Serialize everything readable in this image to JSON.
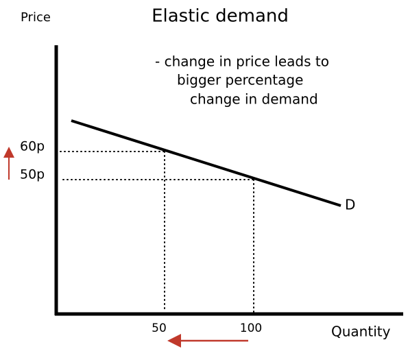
{
  "title": "Elastic demand",
  "y_axis_label": "Price",
  "x_axis_label": "Quantity",
  "annotation": [
    "- change in price leads to",
    "bigger percentage",
    "change in demand"
  ],
  "curve_label": "D",
  "price_labels": [
    "60p",
    "50p"
  ],
  "quantity_labels": [
    "50",
    "100"
  ]
}
